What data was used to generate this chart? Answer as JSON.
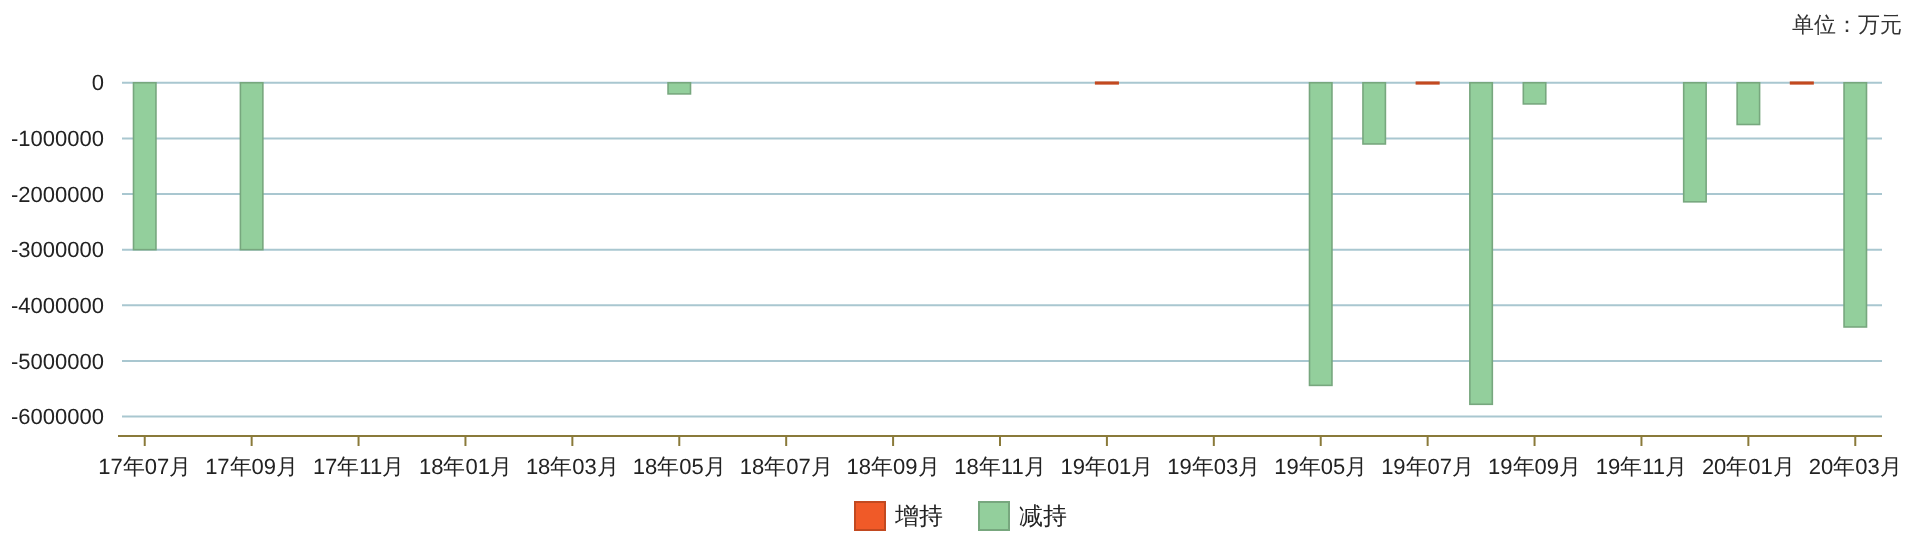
{
  "chart_data": {
    "type": "bar",
    "annotations": [
      "单位：万元"
    ],
    "categories": [
      "17年07月",
      null,
      "17年09月",
      null,
      "17年11月",
      null,
      "18年01月",
      null,
      "18年03月",
      null,
      "18年05月",
      null,
      "18年07月",
      null,
      "18年09月",
      null,
      "18年11月",
      null,
      "19年01月",
      null,
      "19年03月",
      null,
      "19年05月",
      null,
      "19年07月",
      null,
      "19年09月",
      null,
      "19年11月",
      null,
      "20年01月",
      null,
      "20年03月"
    ],
    "series": [
      {
        "name": "增持",
        "color": "#f05a28",
        "values": [
          null,
          null,
          null,
          null,
          null,
          null,
          null,
          null,
          null,
          null,
          null,
          null,
          null,
          null,
          null,
          null,
          null,
          null,
          10000,
          null,
          null,
          null,
          null,
          null,
          10000,
          null,
          null,
          null,
          null,
          null,
          null,
          10000,
          null
        ]
      },
      {
        "name": "减持",
        "color": "#93cf9c",
        "values": [
          -3000000,
          null,
          -3000000,
          null,
          null,
          null,
          null,
          null,
          null,
          null,
          -200000,
          null,
          null,
          null,
          null,
          null,
          null,
          null,
          null,
          null,
          null,
          null,
          -5440000,
          -1100000,
          null,
          -5780000,
          -380000,
          null,
          null,
          -2140000,
          -750000,
          null,
          -4390000
        ]
      }
    ],
    "ylim": [
      -6350000,
      50000
    ],
    "yticks": [
      0,
      -1000000,
      -2000000,
      -3000000,
      -4000000,
      -5000000,
      -6000000
    ],
    "grid": "y",
    "legend": "bottom"
  }
}
